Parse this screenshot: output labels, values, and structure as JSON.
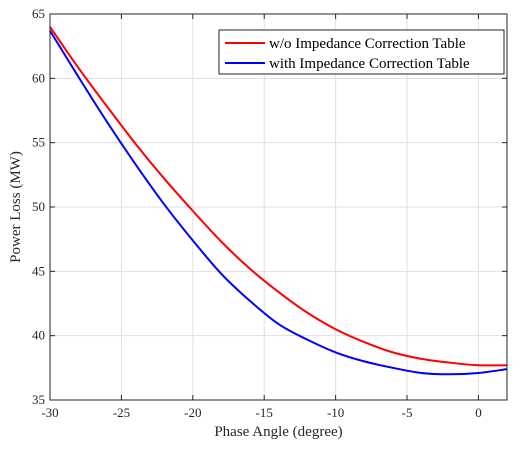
{
  "chart_data": {
    "type": "line",
    "xlabel": "Phase Angle (degree)",
    "ylabel": "Power Loss (MW)",
    "xlim": [
      -30,
      2
    ],
    "ylim": [
      35,
      65
    ],
    "xticks": [
      "-30",
      "-25",
      "-20",
      "-15",
      "-10",
      "-5",
      "0"
    ],
    "yticks": [
      "35",
      "40",
      "45",
      "50",
      "55",
      "60",
      "65"
    ],
    "grid": true,
    "legend_position": "top-right",
    "series": [
      {
        "name": "w/o Impedance Correction Table",
        "color": "#ff0000",
        "x": [
          -30,
          -28,
          -26,
          -24,
          -22,
          -20,
          -18,
          -16,
          -14,
          -12,
          -10,
          -8,
          -6,
          -4,
          -2,
          0,
          2
        ],
        "y": [
          64.0,
          60.8,
          57.8,
          54.9,
          52.2,
          49.7,
          47.3,
          45.2,
          43.4,
          41.8,
          40.5,
          39.5,
          38.7,
          38.2,
          37.9,
          37.7,
          37.7
        ]
      },
      {
        "name": "with Impedance Correction Table",
        "color": "#0000ff",
        "x": [
          -30,
          -28,
          -26,
          -24,
          -22,
          -20,
          -18,
          -16,
          -14,
          -12,
          -10,
          -8,
          -6,
          -4,
          -2,
          0,
          2
        ],
        "y": [
          63.7,
          60.1,
          56.6,
          53.3,
          50.2,
          47.4,
          44.8,
          42.7,
          40.9,
          39.7,
          38.7,
          38.0,
          37.5,
          37.1,
          37.0,
          37.1,
          37.4
        ]
      }
    ]
  }
}
